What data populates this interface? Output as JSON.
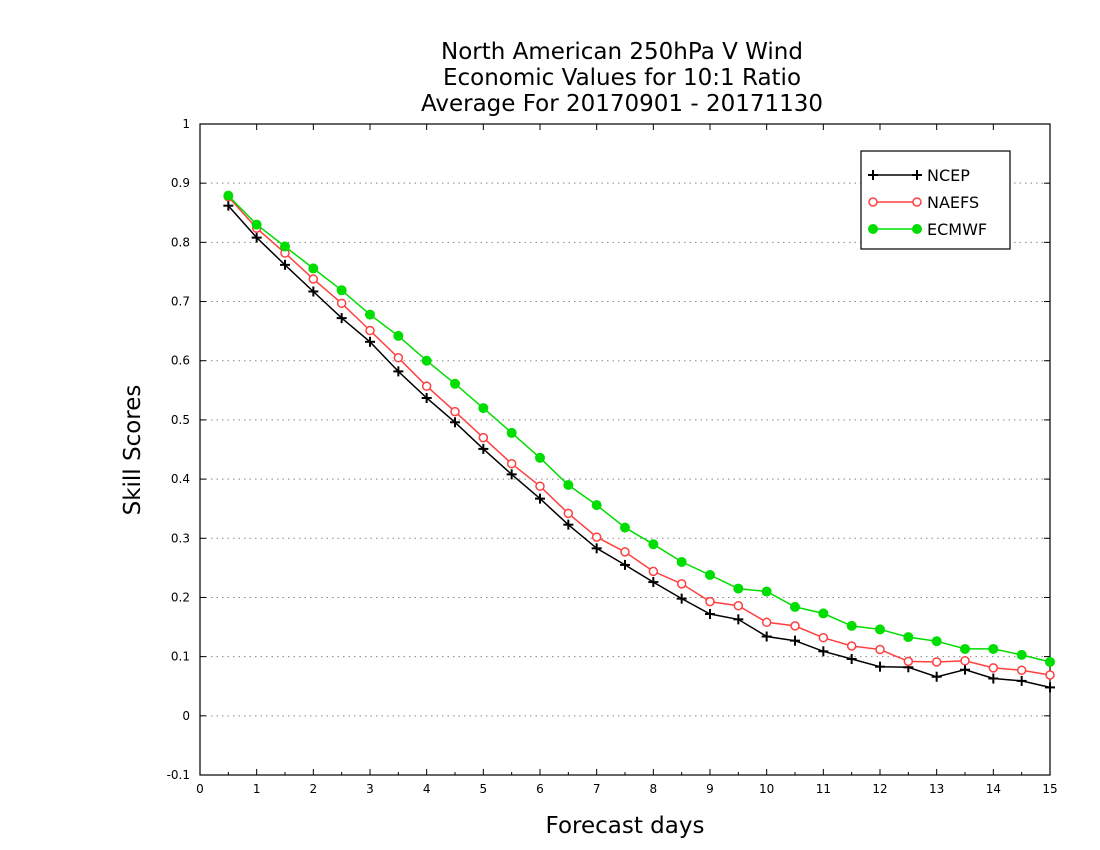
{
  "chart_data": {
    "type": "line",
    "title": [
      "North American 250hPa V Wind",
      "Economic Values for 10:1 Ratio",
      "Average For 20170901 - 20171130"
    ],
    "xlabel": "Forecast days",
    "ylabel": "Skill Scores",
    "xlim": [
      0,
      15
    ],
    "ylim": [
      -0.1,
      1
    ],
    "xticks": [
      0,
      1,
      2,
      3,
      4,
      5,
      6,
      7,
      8,
      9,
      10,
      11,
      12,
      13,
      14,
      15
    ],
    "xtick_labels": [
      "0",
      "1",
      "2",
      "3",
      "4",
      "5",
      "6",
      "7",
      "8",
      "9",
      "10",
      "11",
      "12",
      "13",
      "14",
      "15"
    ],
    "yticks": [
      -0.1,
      0,
      0.1,
      0.2,
      0.3,
      0.4,
      0.5,
      0.6,
      0.7,
      0.8,
      0.9,
      1
    ],
    "ytick_labels": [
      "-0.1",
      "0",
      "0.1",
      "0.2",
      "0.3",
      "0.4",
      "0.5",
      "0.6",
      "0.7",
      "0.8",
      "0.9",
      "1"
    ],
    "grid": true,
    "legend_position": "top-right",
    "x": [
      0.5,
      1,
      1.5,
      2,
      2.5,
      3,
      3.5,
      4,
      4.5,
      5,
      5.5,
      6,
      6.5,
      7,
      7.5,
      8,
      8.5,
      9,
      9.5,
      10,
      10.5,
      11,
      11.5,
      12,
      12.5,
      13,
      13.5,
      14,
      14.5,
      15
    ],
    "series": [
      {
        "name": "NCEP",
        "color": "#000000",
        "marker": "plus",
        "values": [
          0.862,
          0.808,
          0.762,
          0.717,
          0.672,
          0.632,
          0.582,
          0.537,
          0.496,
          0.451,
          0.408,
          0.367,
          0.323,
          0.283,
          0.255,
          0.226,
          0.198,
          0.172,
          0.163,
          0.134,
          0.127,
          0.109,
          0.096,
          0.083,
          0.082,
          0.066,
          0.078,
          0.063,
          0.059,
          0.048
        ]
      },
      {
        "name": "NAEFS",
        "color": "#ff4040",
        "marker": "open-circle",
        "values": [
          0.877,
          0.824,
          0.782,
          0.738,
          0.697,
          0.651,
          0.605,
          0.557,
          0.514,
          0.47,
          0.426,
          0.388,
          0.342,
          0.302,
          0.277,
          0.244,
          0.223,
          0.193,
          0.186,
          0.158,
          0.152,
          0.132,
          0.118,
          0.112,
          0.092,
          0.091,
          0.093,
          0.081,
          0.077,
          0.069
        ]
      },
      {
        "name": "ECMWF",
        "color": "#00dd00",
        "marker": "filled-circle",
        "values": [
          0.879,
          0.83,
          0.793,
          0.756,
          0.719,
          0.678,
          0.642,
          0.6,
          0.561,
          0.52,
          0.478,
          0.436,
          0.39,
          0.356,
          0.318,
          0.29,
          0.26,
          0.238,
          0.215,
          0.21,
          0.184,
          0.173,
          0.152,
          0.146,
          0.133,
          0.126,
          0.113,
          0.113,
          0.103,
          0.091
        ]
      }
    ]
  }
}
